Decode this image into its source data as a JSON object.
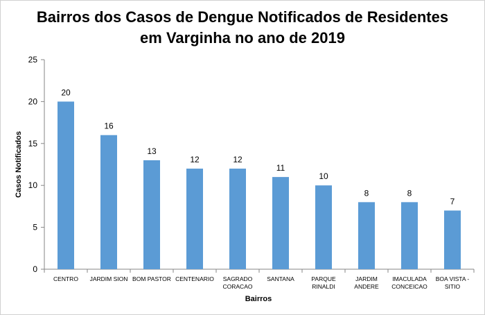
{
  "chart_data": {
    "type": "bar",
    "title": [
      "Bairros dos Casos de Dengue Notificados de Residentes",
      "em Varginha no ano de 2019"
    ],
    "xlabel": "Bairros",
    "ylabel": "Casos Notificados",
    "ylim": [
      0,
      25
    ],
    "yticks": [
      0,
      5,
      10,
      15,
      20,
      25
    ],
    "grid": false,
    "legend": "none",
    "bar_color": "#5b9bd5",
    "categories": [
      [
        "CENTRO"
      ],
      [
        "JARDIM SION"
      ],
      [
        "BOM PASTOR"
      ],
      [
        "CENTENARIO"
      ],
      [
        "SAGRADO",
        "CORACAO"
      ],
      [
        "SANTANA"
      ],
      [
        "PARQUE",
        "RINALDI"
      ],
      [
        "JARDIM",
        "ANDERE"
      ],
      [
        "IMACULADA",
        "CONCEICAO"
      ],
      [
        "BOA VISTA -",
        "SITIO"
      ]
    ],
    "values": [
      20,
      16,
      13,
      12,
      12,
      11,
      10,
      8,
      8,
      7
    ]
  }
}
